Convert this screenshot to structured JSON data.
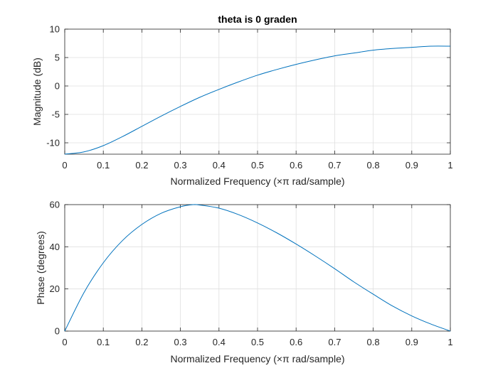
{
  "chart_data": [
    {
      "type": "line",
      "title": "theta is 0 graden",
      "xlabel": "Normalized Frequency  (×π rad/sample)",
      "ylabel": "Magnitude (dB)",
      "xlim": [
        0,
        1
      ],
      "ylim": [
        -12,
        10
      ],
      "xticks": [
        0,
        0.1,
        0.2,
        0.3,
        0.4,
        0.5,
        0.6,
        0.7,
        0.8,
        0.9,
        1
      ],
      "xtick_labels": [
        "0",
        "0.1",
        "0.2",
        "0.3",
        "0.4",
        "0.5",
        "0.6",
        "0.7",
        "0.8",
        "0.9",
        "1"
      ],
      "yticks": [
        -10,
        -5,
        0,
        5,
        10
      ],
      "ytick_labels": [
        "-10",
        "-5",
        "0",
        "5",
        "10"
      ],
      "grid": true,
      "line_color": "#0072bd",
      "x": [
        0,
        0.05,
        0.1,
        0.15,
        0.2,
        0.25,
        0.3,
        0.35,
        0.4,
        0.45,
        0.5,
        0.55,
        0.6,
        0.65,
        0.7,
        0.75,
        0.8,
        0.85,
        0.9,
        0.95,
        1
      ],
      "y": [
        -12.0,
        -11.6,
        -10.5,
        -8.9,
        -7.1,
        -5.3,
        -3.6,
        -2.0,
        -0.6,
        0.7,
        1.9,
        2.9,
        3.8,
        4.6,
        5.3,
        5.8,
        6.3,
        6.6,
        6.8,
        7.0,
        7.0
      ]
    },
    {
      "type": "line",
      "title": "",
      "xlabel": "Normalized Frequency  (×π rad/sample)",
      "ylabel": "Phase (degrees)",
      "xlim": [
        0,
        1
      ],
      "ylim": [
        0,
        60
      ],
      "xticks": [
        0,
        0.1,
        0.2,
        0.3,
        0.4,
        0.5,
        0.6,
        0.7,
        0.8,
        0.9,
        1
      ],
      "xtick_labels": [
        "0",
        "0.1",
        "0.2",
        "0.3",
        "0.4",
        "0.5",
        "0.6",
        "0.7",
        "0.8",
        "0.9",
        "1"
      ],
      "yticks": [
        0,
        20,
        40,
        60
      ],
      "ytick_labels": [
        "0",
        "20",
        "40",
        "60"
      ],
      "grid": true,
      "line_color": "#0072bd",
      "x": [
        0,
        0.05,
        0.1,
        0.15,
        0.2,
        0.25,
        0.3,
        0.333,
        0.35,
        0.4,
        0.45,
        0.5,
        0.55,
        0.6,
        0.65,
        0.7,
        0.75,
        0.8,
        0.85,
        0.9,
        0.95,
        1
      ],
      "y": [
        0,
        18.3,
        32.4,
        43.0,
        50.6,
        55.9,
        59.0,
        60.0,
        59.8,
        58.3,
        55.3,
        51.3,
        46.6,
        41.3,
        35.6,
        29.6,
        23.3,
        17.5,
        11.9,
        7.2,
        3.3,
        0
      ]
    }
  ]
}
